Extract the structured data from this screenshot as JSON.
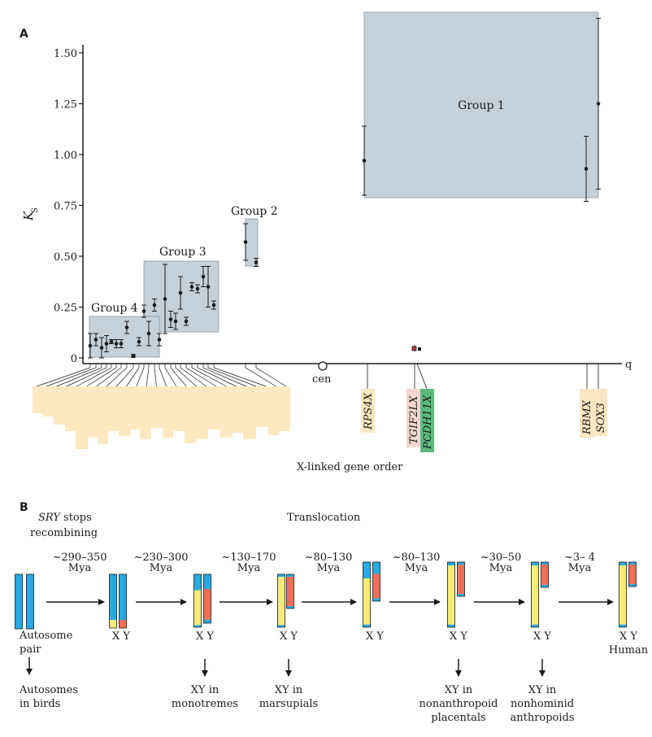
{
  "colors": {
    "group_box": "#c5d0d8",
    "group_box_stroke": "#8a98a3",
    "gene_bar": "#fde8c0",
    "gene_label_tan": "#fbe6c2",
    "gene_label_pink": "#f3d6cf",
    "gene_label_green": "#5bb97d",
    "chrom_blue": "#27a9e1",
    "chrom_yellow": "#f6ea78",
    "chrom_orange": "#ee7059"
  },
  "panel_a": {
    "label": "A",
    "y_axis_label": "K",
    "y_axis_label_sub": "S",
    "y_ticks": [
      "1.50",
      "1.25",
      "1.00",
      "0.75",
      "0.50",
      "0.25",
      "0"
    ],
    "q_label": "q",
    "cen_label": "cen",
    "x_axis_label": "X-linked gene order",
    "groups": [
      "Group 1",
      "Group 2",
      "Group 3",
      "Group 4"
    ],
    "genes": [
      "RPS4X",
      "TGIF2LX",
      "PCDH11X",
      "RBMX",
      "SOX3"
    ]
  },
  "chart_data": {
    "type": "scatter",
    "title": "",
    "xlabel": "X-linked gene order",
    "ylabel": "Ks",
    "ylim": [
      0,
      1.5
    ],
    "series": [
      {
        "name": "Group 4",
        "points": [
          {
            "y": 0.06,
            "err": 0.06
          },
          {
            "y": 0.09,
            "err": 0.03
          },
          {
            "y": 0.05,
            "err": 0.05
          },
          {
            "y": 0.07,
            "err": 0.04
          },
          {
            "y": 0.08,
            "err": 0.01
          },
          {
            "y": 0.07,
            "err": 0.02
          },
          {
            "y": 0.07,
            "err": 0.02
          },
          {
            "y": 0.15,
            "err": 0.03
          },
          {
            "y": 0.01,
            "err": 0
          }
        ]
      },
      {
        "name": "Group 3",
        "points": [
          {
            "y": 0.08,
            "err": 0.02
          },
          {
            "y": 0.23,
            "err": 0.03
          },
          {
            "y": 0.12,
            "err": 0.06
          },
          {
            "y": 0.26,
            "err": 0.03
          },
          {
            "y": 0.09,
            "err": 0.03
          },
          {
            "y": 0.29,
            "err": 0.17
          },
          {
            "y": 0.19,
            "err": 0.04
          },
          {
            "y": 0.18,
            "err": 0.04
          },
          {
            "y": 0.32,
            "err": 0.08
          },
          {
            "y": 0.18,
            "err": 0.02
          },
          {
            "y": 0.35,
            "err": 0.02
          },
          {
            "y": 0.34,
            "err": 0.02
          },
          {
            "y": 0.4,
            "err": 0.05
          },
          {
            "y": 0.35,
            "err": 0.1
          },
          {
            "y": 0.26,
            "err": 0.02
          }
        ]
      },
      {
        "name": "Group 2",
        "points": [
          {
            "y": 0.57,
            "err": 0.09
          },
          {
            "y": 0.47,
            "err": 0.02
          }
        ]
      },
      {
        "name": "Group 1",
        "points": [
          {
            "y": 0.97,
            "err": 0.17
          },
          {
            "y": 0.93,
            "err": 0.16
          },
          {
            "y": 1.25,
            "err": 0.42
          }
        ]
      }
    ]
  },
  "panel_b": {
    "label": "B",
    "note_title_italic": "SRY",
    "note_title_rest": " stops",
    "note_title_line2": "recombining",
    "translocation_label": "Translocation",
    "intervals": [
      {
        "range": "~290–350",
        "unit": "Mya"
      },
      {
        "range": "~230–300",
        "unit": "Mya"
      },
      {
        "range": "~130–170",
        "unit": "Mya"
      },
      {
        "range": "~80–130",
        "unit": "Mya"
      },
      {
        "range": "~80–130",
        "unit": "Mya"
      },
      {
        "range": "~30–50",
        "unit": "Mya"
      },
      {
        "range": "~3– 4",
        "unit": "Mya"
      }
    ],
    "stage_labels": [
      "Autosome",
      "pair",
      "X Y",
      "X Y",
      "X Y",
      "X Y",
      "X Y",
      "X Y",
      "X Y",
      "Human"
    ],
    "outcomes": [
      {
        "line1": "Autosomes",
        "line2": "in birds",
        "line3": ""
      },
      {
        "line1": "XY in",
        "line2": "monotremes",
        "line3": ""
      },
      {
        "line1": "XY in",
        "line2": "marsupials",
        "line3": ""
      },
      {
        "line1": "XY in",
        "line2": "nonanthropoid",
        "line3": "placentals"
      },
      {
        "line1": "XY in",
        "line2": "nonhominid",
        "line3": "anthropoids"
      }
    ]
  }
}
